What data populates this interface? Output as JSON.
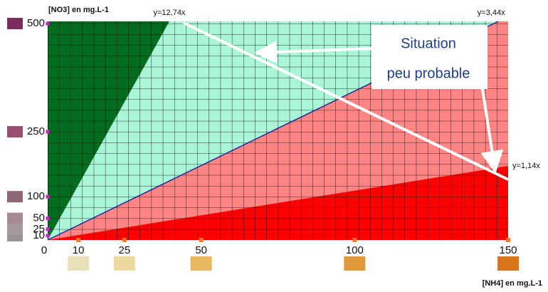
{
  "chart_data": {
    "type": "region",
    "y_label": "[NO3] en mg.L-1",
    "x_label": "[NH4] en mg.L-1",
    "xlim": [
      0,
      150
    ],
    "ylim": [
      0,
      505
    ],
    "xticks": [
      0,
      10,
      25,
      50,
      100,
      150
    ],
    "yticks": [
      10,
      25,
      50,
      100,
      250,
      500
    ],
    "xtick_colors": [
      null,
      "#e9e0b8",
      "#ecd9a0",
      "#e8b860",
      "#e09a3a",
      "#d9741c"
    ],
    "ytick_colors": [
      "#9a9494",
      "#a49a9c",
      "#a88a96",
      "#8e6878",
      "#9c4e72",
      "#7a2c5c"
    ],
    "lines": [
      {
        "slope": 12.74,
        "label": "y=12,74x"
      },
      {
        "slope": 3.44,
        "label": "y=3,44x",
        "color": "#1a2a9a"
      },
      {
        "slope": 1.14,
        "label": "y=1,14x"
      }
    ],
    "region_colors": [
      "#006e1e",
      "#aaf5d8",
      "#ff8585",
      "#ff0000"
    ],
    "annotation": [
      "Situation",
      "peu probable"
    ]
  }
}
